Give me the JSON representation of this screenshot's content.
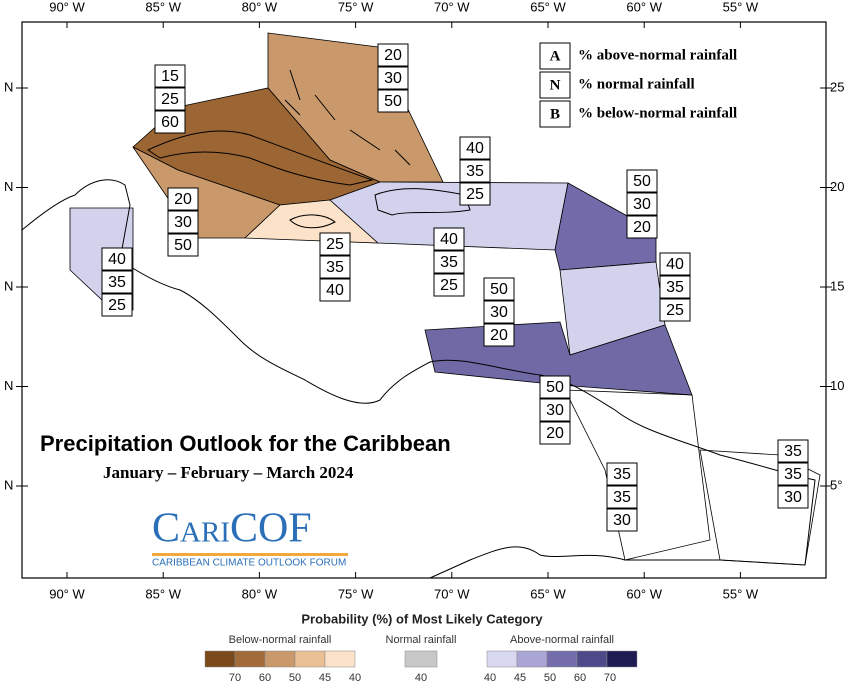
{
  "map": {
    "longitude_labels": [
      "90° W",
      "85° W",
      "80° W",
      "75° W",
      "70° W",
      "65° W",
      "60° W",
      "55° W"
    ],
    "latitude_labels_left": [
      "N",
      "N",
      "N",
      "N",
      "N"
    ],
    "latitude_labels_right": [
      "25°",
      "20°",
      "15°",
      "10°",
      "5°"
    ],
    "legend": [
      {
        "key": "A",
        "label": "% above-normal rainfall"
      },
      {
        "key": "N",
        "label": "% normal rainfall"
      },
      {
        "key": "B",
        "label": "% below-normal rainfall"
      }
    ],
    "title": "Precipitation Outlook for the Caribbean",
    "subtitle": "January – February – March 2024",
    "logo": "CariCOF",
    "logo_subtitle": "CARIBBEAN CLIMATE OUTLOOK FORUM",
    "regions": [
      {
        "probabilities": [
          20,
          30,
          50
        ]
      },
      {
        "probabilities": [
          15,
          25,
          60
        ]
      },
      {
        "probabilities": [
          20,
          30,
          50
        ]
      },
      {
        "probabilities": [
          25,
          35,
          40
        ]
      },
      {
        "probabilities": [
          40,
          35,
          25
        ]
      },
      {
        "probabilities": [
          40,
          35,
          25
        ]
      },
      {
        "probabilities": [
          40,
          35,
          25
        ]
      },
      {
        "probabilities": [
          50,
          30,
          20
        ]
      },
      {
        "probabilities": [
          40,
          35,
          25
        ]
      },
      {
        "probabilities": [
          50,
          30,
          20
        ]
      },
      {
        "probabilities": [
          50,
          30,
          20
        ]
      },
      {
        "probabilities": [
          35,
          35,
          30
        ]
      },
      {
        "probabilities": [
          35,
          35,
          30
        ]
      }
    ],
    "colorbar": {
      "title": "Probability (%) of Most Likely Category",
      "groups": [
        {
          "label": "Below-normal rainfall",
          "ticks": [
            70,
            60,
            50,
            45,
            40
          ],
          "colors": [
            "#7a4a1c",
            "#a26b3a",
            "#c9996b",
            "#e9bf94",
            "#fce2c8"
          ]
        },
        {
          "label": "Normal rainfall",
          "ticks": [
            40
          ],
          "colors": [
            "#c8c8c8"
          ]
        },
        {
          "label": "Above-normal rainfall",
          "ticks": [
            40,
            45,
            50,
            60,
            70
          ],
          "colors": [
            "#d8d8f0",
            "#a9a6d5",
            "#736eab",
            "#4e4a8a",
            "#1e1a52"
          ]
        }
      ]
    }
  }
}
